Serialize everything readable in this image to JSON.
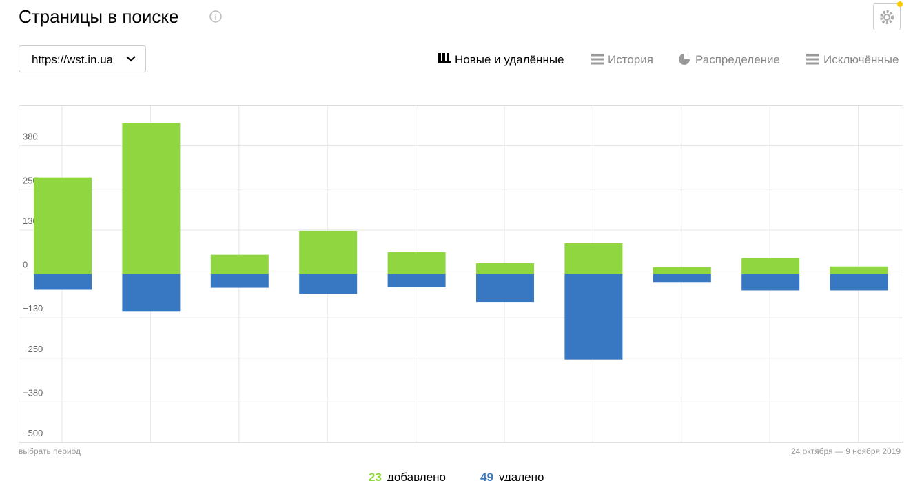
{
  "header": {
    "title": "Страницы в поиске",
    "site": "https://wst.in.ua"
  },
  "tabs": [
    "Новые и удалённые",
    "История",
    "Распределение",
    "Исключённые"
  ],
  "chart_data": {
    "type": "bar",
    "categories": [
      null,
      null,
      null,
      null,
      null,
      null,
      null,
      null,
      null,
      null
    ],
    "series": [
      {
        "name": "добавлено",
        "color": "#8fd641",
        "total": 23,
        "values": [
          286,
          448,
          57,
          128,
          65,
          32,
          91,
          20,
          47,
          22
        ]
      },
      {
        "name": "удалено",
        "color": "#3877c1",
        "total": 49,
        "values": [
          -47,
          -112,
          -41,
          -59,
          -39,
          -83,
          -254,
          -24,
          -49,
          -49
        ]
      }
    ],
    "ylim": [
      -500,
      500
    ],
    "yticks": [
      {
        "value": -500,
        "label": "−500"
      },
      {
        "value": -380,
        "label": "−380"
      },
      {
        "value": -250,
        "label": "−250"
      },
      {
        "value": -130,
        "label": "−130"
      },
      0,
      130,
      250,
      380
    ],
    "grid": true,
    "period_link": "выбрать период",
    "period": "24 октября — 9 ноября 2019"
  }
}
